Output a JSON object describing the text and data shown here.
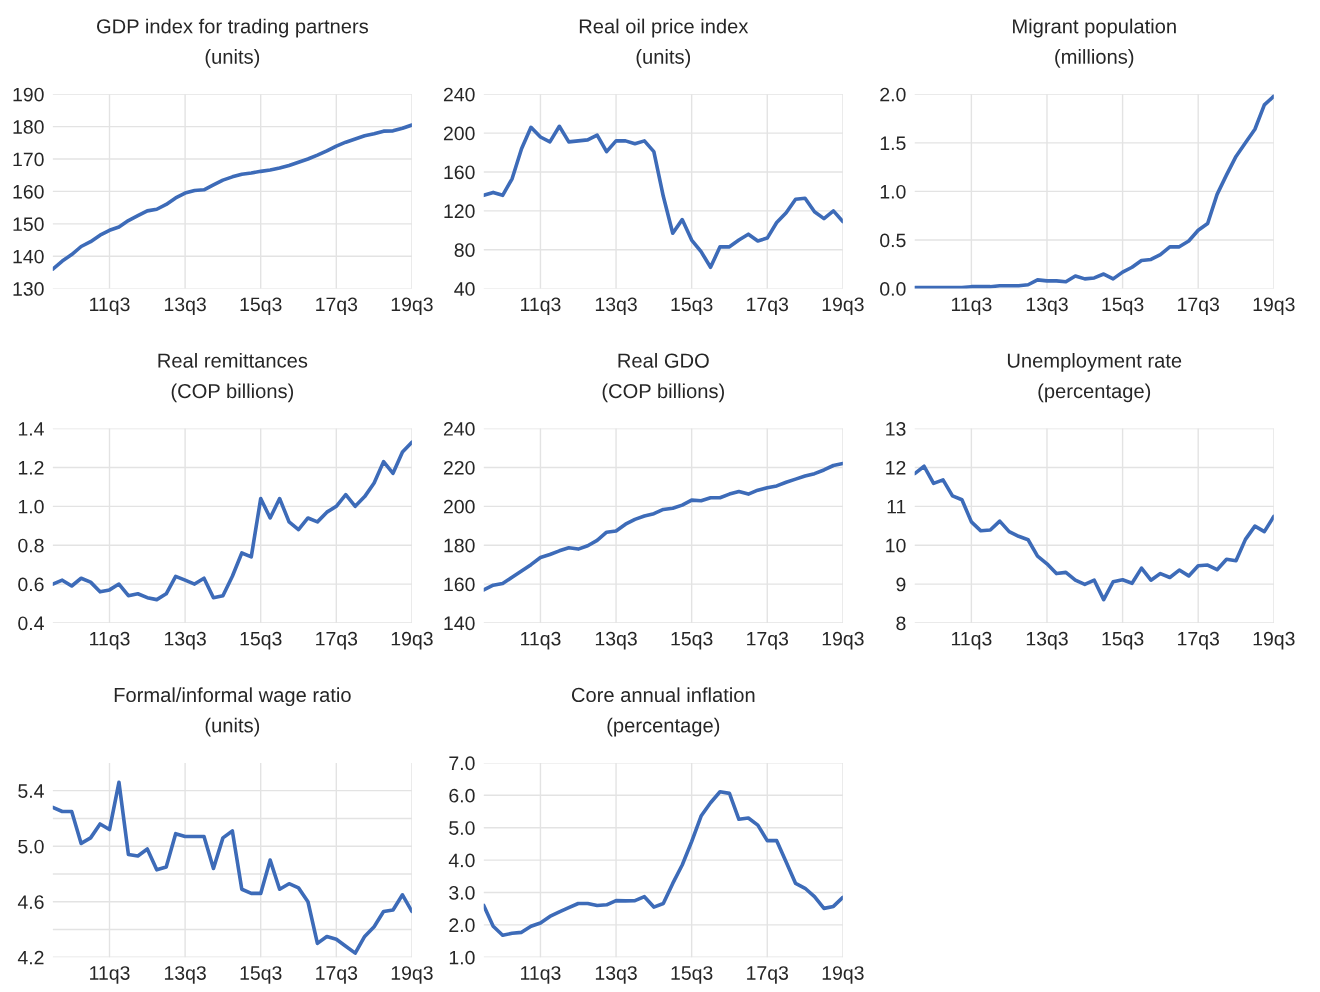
{
  "chart_data": [
    {
      "type": "line",
      "title": "GDP index for trading partners\n(units)",
      "categories": [
        null,
        null,
        null,
        null,
        null,
        null,
        "11q3",
        null,
        null,
        null,
        null,
        null,
        null,
        null,
        "13q3",
        null,
        null,
        null,
        null,
        null,
        null,
        null,
        "15q3",
        null,
        null,
        null,
        null,
        null,
        null,
        null,
        "17q3",
        null,
        null,
        null,
        null,
        null,
        null,
        null,
        "19q3"
      ],
      "series": [
        {
          "color": "#3d6bb8",
          "values": [
            136,
            138.5,
            140.5,
            143,
            144.5,
            146.5,
            148,
            149,
            151,
            152.5,
            154,
            154.5,
            156,
            158,
            159.5,
            160.3,
            160.5,
            162,
            163.5,
            164.5,
            165.3,
            165.7,
            166.2,
            166.6,
            167.2,
            168,
            169,
            170,
            171.2,
            172.5,
            174,
            175.2,
            176.2,
            177.2,
            177.8,
            178.6,
            178.7,
            179.5,
            180.5
          ]
        }
      ],
      "ylim": [
        130,
        190
      ],
      "yticks": [
        130,
        140,
        150,
        160,
        170,
        180,
        190
      ],
      "grid": true
    },
    {
      "type": "line",
      "title": "Real oil price index\n(units)",
      "categories": [
        null,
        null,
        null,
        null,
        null,
        null,
        "11q3",
        null,
        null,
        null,
        null,
        null,
        null,
        null,
        "13q3",
        null,
        null,
        null,
        null,
        null,
        null,
        null,
        "15q3",
        null,
        null,
        null,
        null,
        null,
        null,
        null,
        "17q3",
        null,
        null,
        null,
        null,
        null,
        null,
        null,
        "19q3"
      ],
      "series": [
        {
          "color": "#3d6bb8",
          "values": [
            136,
            139,
            136,
            153,
            184,
            206,
            196,
            191,
            207,
            191,
            192,
            193,
            198,
            181,
            192,
            192,
            189,
            192,
            181,
            135,
            97,
            111,
            90,
            78,
            62,
            83,
            83,
            90,
            96,
            89,
            92,
            108,
            118,
            132,
            133,
            119,
            112,
            120,
            109
          ]
        }
      ],
      "ylim": [
        40,
        240
      ],
      "yticks": [
        40,
        80,
        120,
        160,
        200,
        240
      ],
      "grid": true
    },
    {
      "type": "line",
      "title": "Migrant population\n(millions)",
      "categories": [
        null,
        null,
        null,
        null,
        null,
        null,
        "11q3",
        null,
        null,
        null,
        null,
        null,
        null,
        null,
        "13q3",
        null,
        null,
        null,
        null,
        null,
        null,
        null,
        "15q3",
        null,
        null,
        null,
        null,
        null,
        null,
        null,
        "17q3",
        null,
        null,
        null,
        null,
        null,
        null,
        null,
        "19q3"
      ],
      "series": [
        {
          "color": "#3d6bb8",
          "values": [
            0.01,
            0.01,
            0.01,
            0.01,
            0.01,
            0.01,
            0.02,
            0.02,
            0.02,
            0.03,
            0.03,
            0.03,
            0.04,
            0.09,
            0.08,
            0.08,
            0.07,
            0.13,
            0.1,
            0.11,
            0.15,
            0.1,
            0.17,
            0.22,
            0.29,
            0.3,
            0.35,
            0.43,
            0.43,
            0.49,
            0.6,
            0.67,
            0.97,
            1.17,
            1.36,
            1.5,
            1.64,
            1.89,
            1.98
          ]
        }
      ],
      "ylim": [
        0,
        2
      ],
      "yticks": [
        {
          "value": 0,
          "label": "0.0"
        },
        {
          "value": 0.5,
          "label": "0.5"
        },
        {
          "value": 1,
          "label": "1.0"
        },
        {
          "value": 1.5,
          "label": "1.5"
        },
        {
          "value": 2,
          "label": "2.0"
        }
      ],
      "grid": true
    },
    {
      "type": "line",
      "title": "Real remittances\n(COP billions)",
      "categories": [
        null,
        null,
        null,
        null,
        null,
        null,
        "11q3",
        null,
        null,
        null,
        null,
        null,
        null,
        null,
        "13q3",
        null,
        null,
        null,
        null,
        null,
        null,
        null,
        "15q3",
        null,
        null,
        null,
        null,
        null,
        null,
        null,
        "17q3",
        null,
        null,
        null,
        null,
        null,
        null,
        null,
        "19q3"
      ],
      "series": [
        {
          "color": "#3d6bb8",
          "values": [
            0.6,
            0.62,
            0.59,
            0.63,
            0.61,
            0.56,
            0.57,
            0.6,
            0.54,
            0.55,
            0.53,
            0.52,
            0.55,
            0.64,
            0.62,
            0.6,
            0.63,
            0.53,
            0.54,
            0.64,
            0.76,
            0.74,
            1.04,
            0.94,
            1.04,
            0.92,
            0.88,
            0.94,
            0.92,
            0.97,
            1.0,
            1.06,
            1.0,
            1.05,
            1.12,
            1.23,
            1.17,
            1.28,
            1.33
          ]
        }
      ],
      "ylim": [
        0.4,
        1.4
      ],
      "yticks": [
        {
          "value": 0.4,
          "label": "0.4"
        },
        {
          "value": 0.6,
          "label": "0.6"
        },
        {
          "value": 0.8,
          "label": "0.8"
        },
        {
          "value": 1,
          "label": "1.0"
        },
        {
          "value": 1.2,
          "label": "1.2"
        },
        {
          "value": 1.4,
          "label": "1.4"
        }
      ],
      "grid": true
    },
    {
      "type": "line",
      "title": "Real GDO\n(COP billions)",
      "categories": [
        null,
        null,
        null,
        null,
        null,
        null,
        "11q3",
        null,
        null,
        null,
        null,
        null,
        null,
        null,
        "13q3",
        null,
        null,
        null,
        null,
        null,
        null,
        null,
        "15q3",
        null,
        null,
        null,
        null,
        null,
        null,
        null,
        "17q3",
        null,
        null,
        null,
        null,
        null,
        null,
        null,
        "19q3"
      ],
      "series": [
        {
          "color": "#3d6bb8",
          "values": [
            157,
            159.4,
            160.3,
            163.5,
            166.7,
            170,
            173.7,
            175.2,
            177.1,
            178.7,
            178,
            179.7,
            182.5,
            186.7,
            187.3,
            190.8,
            193.3,
            195,
            196.2,
            198.4,
            199,
            200.6,
            203.2,
            202.9,
            204.4,
            204.4,
            206.3,
            207.6,
            206.3,
            208.3,
            209.5,
            210.5,
            212.4,
            214,
            215.6,
            216.8,
            218.7,
            221,
            222
          ]
        }
      ],
      "ylim": [
        140,
        240
      ],
      "yticks": [
        140,
        160,
        180,
        200,
        220,
        240
      ],
      "grid": true
    },
    {
      "type": "line",
      "title": "Unemployment rate\n(percentage)",
      "categories": [
        null,
        null,
        null,
        null,
        null,
        null,
        "11q3",
        null,
        null,
        null,
        null,
        null,
        null,
        null,
        "13q3",
        null,
        null,
        null,
        null,
        null,
        null,
        null,
        "15q3",
        null,
        null,
        null,
        null,
        null,
        null,
        null,
        "17q3",
        null,
        null,
        null,
        null,
        null,
        null,
        null,
        "19q3"
      ],
      "series": [
        {
          "color": "#3d6bb8",
          "values": [
            11.84,
            12.03,
            11.59,
            11.68,
            11.27,
            11.17,
            10.6,
            10.37,
            10.39,
            10.62,
            10.35,
            10.23,
            10.14,
            9.72,
            9.52,
            9.27,
            9.3,
            9.1,
            8.99,
            9.1,
            8.6,
            9.06,
            9.11,
            9.02,
            9.41,
            9.1,
            9.27,
            9.17,
            9.36,
            9.21,
            9.47,
            9.49,
            9.37,
            9.64,
            9.6,
            10.15,
            10.49,
            10.35,
            10.74
          ]
        }
      ],
      "ylim": [
        8,
        13
      ],
      "yticks": [
        8,
        9,
        10,
        11,
        12,
        13
      ],
      "grid": true
    },
    {
      "type": "line",
      "title": "Formal/informal wage ratio\n(units)",
      "categories": [
        null,
        null,
        null,
        null,
        null,
        null,
        "11q3",
        null,
        null,
        null,
        null,
        null,
        null,
        null,
        "13q3",
        null,
        null,
        null,
        null,
        null,
        null,
        null,
        "15q3",
        null,
        null,
        null,
        null,
        null,
        null,
        null,
        "17q3",
        null,
        null,
        null,
        null,
        null,
        null,
        null,
        "19q3"
      ],
      "series": [
        {
          "color": "#3d6bb8",
          "values": [
            5.28,
            5.25,
            5.25,
            5.02,
            5.06,
            5.16,
            5.12,
            5.46,
            4.94,
            4.93,
            4.98,
            4.83,
            4.85,
            5.09,
            5.07,
            5.07,
            5.07,
            4.84,
            5.06,
            5.11,
            4.69,
            4.66,
            4.66,
            4.9,
            4.69,
            4.73,
            4.7,
            4.6,
            4.3,
            4.35,
            4.33,
            4.28,
            4.23,
            4.35,
            4.42,
            4.53,
            4.54,
            4.65,
            4.53
          ]
        }
      ],
      "ylim": [
        4.2,
        5.6
      ],
      "yticks": [
        {
          "value": 4.2,
          "label": "4.2"
        },
        {
          "value": 4.4,
          "label": null
        },
        {
          "value": 4.6,
          "label": "4.6"
        },
        {
          "value": 4.8,
          "label": null
        },
        {
          "value": 5.0,
          "label": "5.0"
        },
        {
          "value": 5.2,
          "label": null
        },
        {
          "value": 5.4,
          "label": "5.4"
        }
      ],
      "grid": true
    },
    {
      "type": "line",
      "title": "Core annual inflation\n(percentage)",
      "categories": [
        null,
        null,
        null,
        null,
        null,
        null,
        "11q3",
        null,
        null,
        null,
        null,
        null,
        null,
        null,
        "13q3",
        null,
        null,
        null,
        null,
        null,
        null,
        null,
        "15q3",
        null,
        null,
        null,
        null,
        null,
        null,
        null,
        "17q3",
        null,
        null,
        null,
        null,
        null,
        null,
        null,
        "19q3"
      ],
      "series": [
        {
          "color": "#3d6bb8",
          "values": [
            2.6,
            1.96,
            1.68,
            1.74,
            1.77,
            1.96,
            2.06,
            2.26,
            2.4,
            2.53,
            2.66,
            2.66,
            2.6,
            2.62,
            2.75,
            2.74,
            2.75,
            2.87,
            2.55,
            2.66,
            3.28,
            3.85,
            4.57,
            5.36,
            5.77,
            6.11,
            6.06,
            5.26,
            5.3,
            5.08,
            4.6,
            4.6,
            3.94,
            3.28,
            3.13,
            2.87,
            2.51,
            2.57,
            2.85
          ]
        }
      ],
      "ylim": [
        1,
        7
      ],
      "yticks": [
        {
          "value": 1,
          "label": "1.0"
        },
        {
          "value": 2,
          "label": "2.0"
        },
        {
          "value": 3,
          "label": "3.0"
        },
        {
          "value": 4,
          "label": "4.0"
        },
        {
          "value": 5,
          "label": "5.0"
        },
        {
          "value": 6,
          "label": "6.0"
        },
        {
          "value": 7,
          "label": "7.0"
        }
      ],
      "grid": true
    }
  ]
}
